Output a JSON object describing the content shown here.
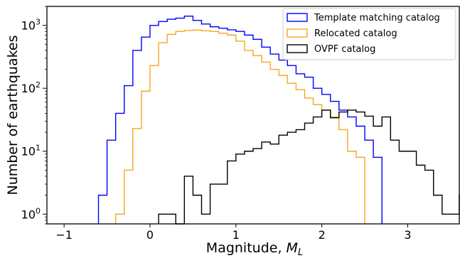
{
  "chart_data": {
    "type": "histogram",
    "xlabel": "Magnitude, ",
    "xlabel_symbol": "M",
    "xlabel_subscript": "L",
    "ylabel": "Number of earthquakes",
    "y_scale": "log",
    "xlim": [
      -1.2,
      3.6
    ],
    "ylim": [
      0.7,
      2000
    ],
    "x_ticks": [
      -1,
      0,
      1,
      2,
      3
    ],
    "x_tick_labels": [
      "−1",
      "0",
      "1",
      "2",
      "3"
    ],
    "y_ticks": [
      1,
      10,
      100,
      1000
    ],
    "y_tick_labels": [
      {
        "base": "10",
        "exp": "0"
      },
      {
        "base": "10",
        "exp": "1"
      },
      {
        "base": "10",
        "exp": "2"
      },
      {
        "base": "10",
        "exp": "3"
      }
    ],
    "grid": false,
    "legend_placement": "top-right",
    "bin_width": 0.1,
    "series": [
      {
        "name": "Template matching catalog",
        "color": "#0000ff",
        "bin_start": -0.6,
        "counts": [
          2,
          15,
          40,
          110,
          400,
          650,
          1000,
          1150,
          1250,
          1300,
          1400,
          1200,
          1050,
          950,
          900,
          850,
          800,
          700,
          600,
          450,
          350,
          280,
          230,
          170,
          150,
          100,
          80,
          62,
          45,
          35,
          25,
          15,
          8
        ]
      },
      {
        "name": "Relocated catalog",
        "color": "#f5a623",
        "bin_start": -0.4,
        "counts": [
          1,
          5,
          23,
          90,
          230,
          530,
          720,
          800,
          830,
          840,
          820,
          800,
          750,
          700,
          560,
          400,
          330,
          260,
          200,
          160,
          120,
          95,
          70,
          55,
          45,
          35,
          22,
          10,
          8
        ]
      },
      {
        "name": "OVPF catalog",
        "color": "#000000",
        "bin_start": 0.1,
        "counts": [
          1,
          1,
          0,
          4,
          2,
          1,
          3,
          3,
          7,
          9,
          10,
          11,
          14,
          13,
          18,
          20,
          22,
          28,
          35,
          45,
          34,
          42,
          45,
          42,
          36,
          25,
          35,
          15,
          10,
          10,
          6,
          5,
          2,
          1,
          1,
          2,
          1,
          2,
          1,
          1,
          1
        ]
      }
    ]
  }
}
